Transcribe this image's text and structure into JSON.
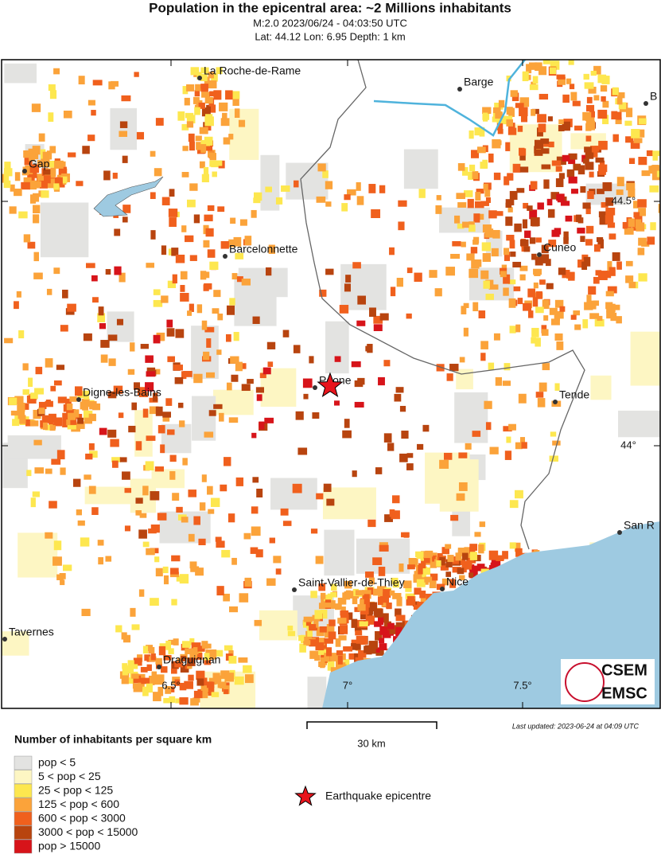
{
  "header": {
    "title": "Population in the epicentral area: ~2 Millions inhabitants",
    "lines": [
      "M:2.0 2023/06/24 - 04:03:50 UTC",
      "Lat: 44.12 Lon: 6.95 Depth: 1 km"
    ]
  },
  "map": {
    "cities": [
      "La Roche-de-Rame",
      "Barge",
      "B",
      "Gap",
      "Barcelonnette",
      "Cuneo",
      "Péone",
      "Digne-les-Bains",
      "Tende",
      "San R",
      "Saint-Vallier-de-Thiey",
      "Nice",
      "Tavernes",
      "Draguignan"
    ],
    "lat_labels": [
      "44.5°",
      "44°"
    ],
    "lon_labels": [
      "6.5°",
      "7°",
      "7.5°"
    ],
    "scale": "30 km",
    "last_updated": "Last updated: 2023-06-24 at 04:09 UTC",
    "logo": [
      "CSEM",
      "EMSC"
    ]
  },
  "legend": {
    "title": "Number of inhabitants per square km",
    "items": [
      {
        "label": "pop < 5",
        "color": "#e3e3e1"
      },
      {
        "label": "5 < pop < 25",
        "color": "#fdf6c3"
      },
      {
        "label": "25 < pop < 125",
        "color": "#fde74f"
      },
      {
        "label": "125 < pop < 600",
        "color": "#fba33a"
      },
      {
        "label": "600 < pop < 3000",
        "color": "#f0601d"
      },
      {
        "label": "3000 < pop < 15000",
        "color": "#b8440f"
      },
      {
        "label": "pop > 15000",
        "color": "#d7141a"
      }
    ],
    "epicentre": "Earthquake epicentre"
  }
}
